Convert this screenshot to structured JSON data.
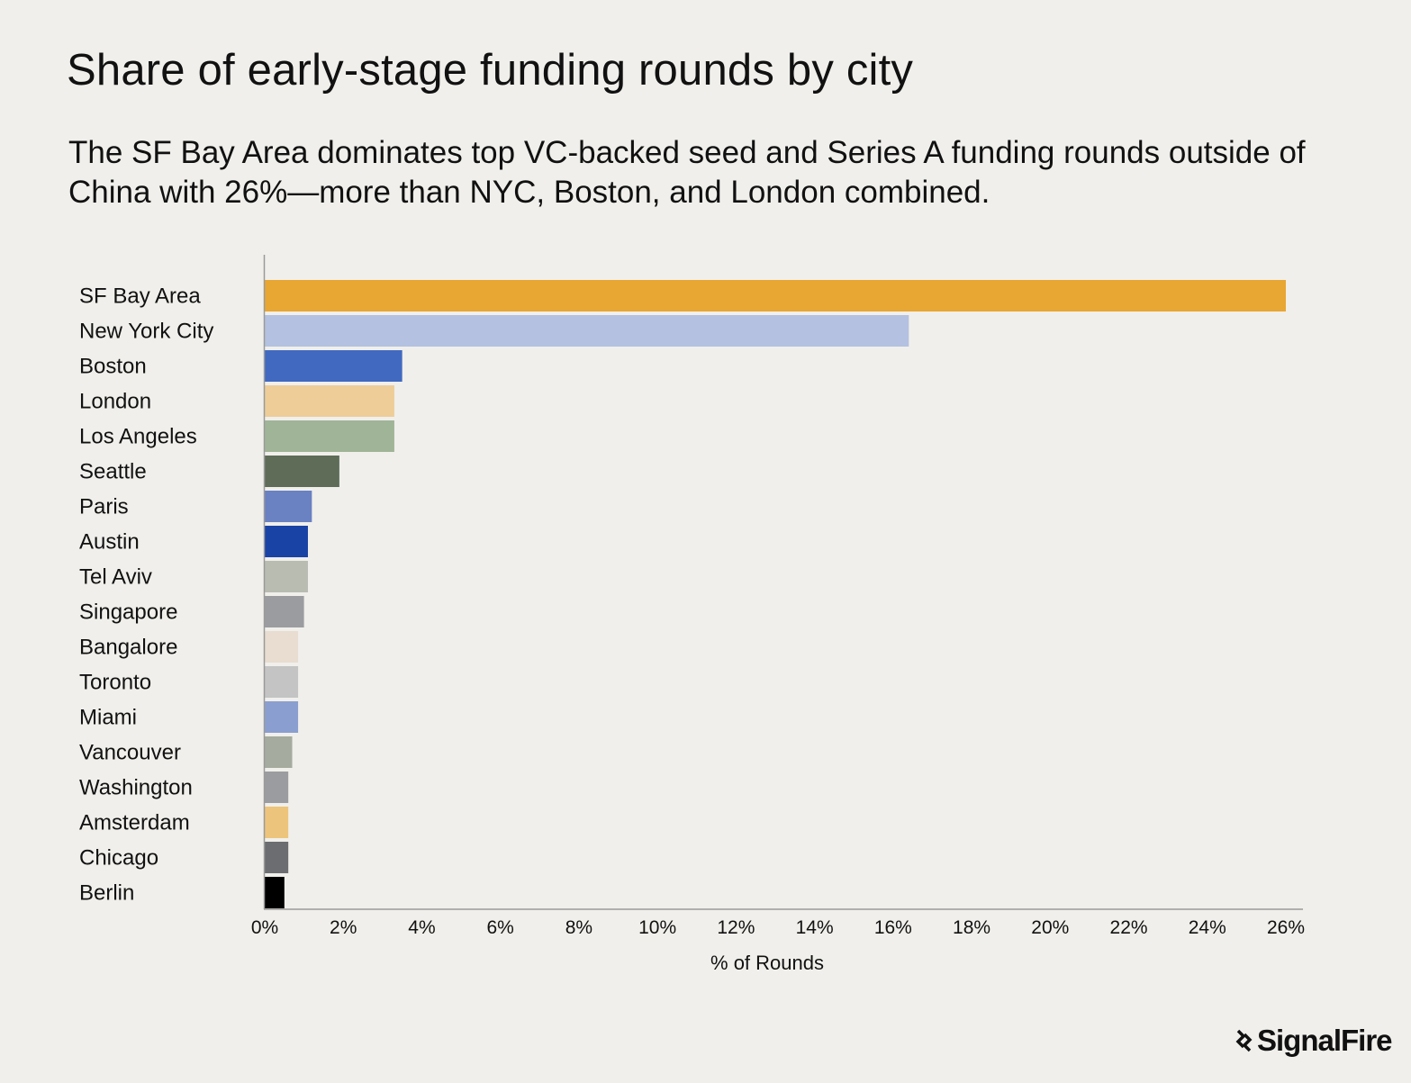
{
  "header": {
    "title": "Share of early-stage funding rounds by city",
    "subtitle": "The SF Bay Area dominates top VC-backed seed and Series A funding rounds outside of China with 26%—more than NYC, Boston, and London combined."
  },
  "chart_data": {
    "type": "bar",
    "orientation": "horizontal",
    "categories": [
      "SF Bay Area",
      "New York City",
      "Boston",
      "London",
      "Los Angeles",
      "Seattle",
      "Paris",
      "Austin",
      "Tel Aviv",
      "Singapore",
      "Bangalore",
      "Toronto",
      "Miami",
      "Vancouver",
      "Washington",
      "Amsterdam",
      "Chicago",
      "Berlin"
    ],
    "values": [
      26.0,
      16.4,
      3.5,
      3.3,
      3.3,
      1.9,
      1.2,
      1.1,
      1.1,
      1.0,
      0.85,
      0.85,
      0.85,
      0.7,
      0.6,
      0.6,
      0.6,
      0.5
    ],
    "colors": [
      "#e8a633",
      "#b4c1e0",
      "#4169c0",
      "#eecd99",
      "#a0b497",
      "#5e6c58",
      "#6a81c2",
      "#1a43a6",
      "#b8bcb1",
      "#9a9ca0",
      "#e8ddd0",
      "#c3c4c3",
      "#8a9fcf",
      "#a5ab9e",
      "#9b9c9f",
      "#edc47b",
      "#6b6d70",
      "#000000"
    ],
    "xticks": [
      "0%",
      "2%",
      "4%",
      "6%",
      "8%",
      "10%",
      "12%",
      "14%",
      "16%",
      "18%",
      "20%",
      "22%",
      "24%",
      "26%"
    ],
    "xlim": [
      0,
      26
    ],
    "xlabel": "% of Rounds",
    "ylabel": "",
    "grid": false,
    "legend": "none"
  },
  "brand": {
    "logo_text": "SignalFire",
    "logo_icon": "signalfire-mark-icon"
  }
}
